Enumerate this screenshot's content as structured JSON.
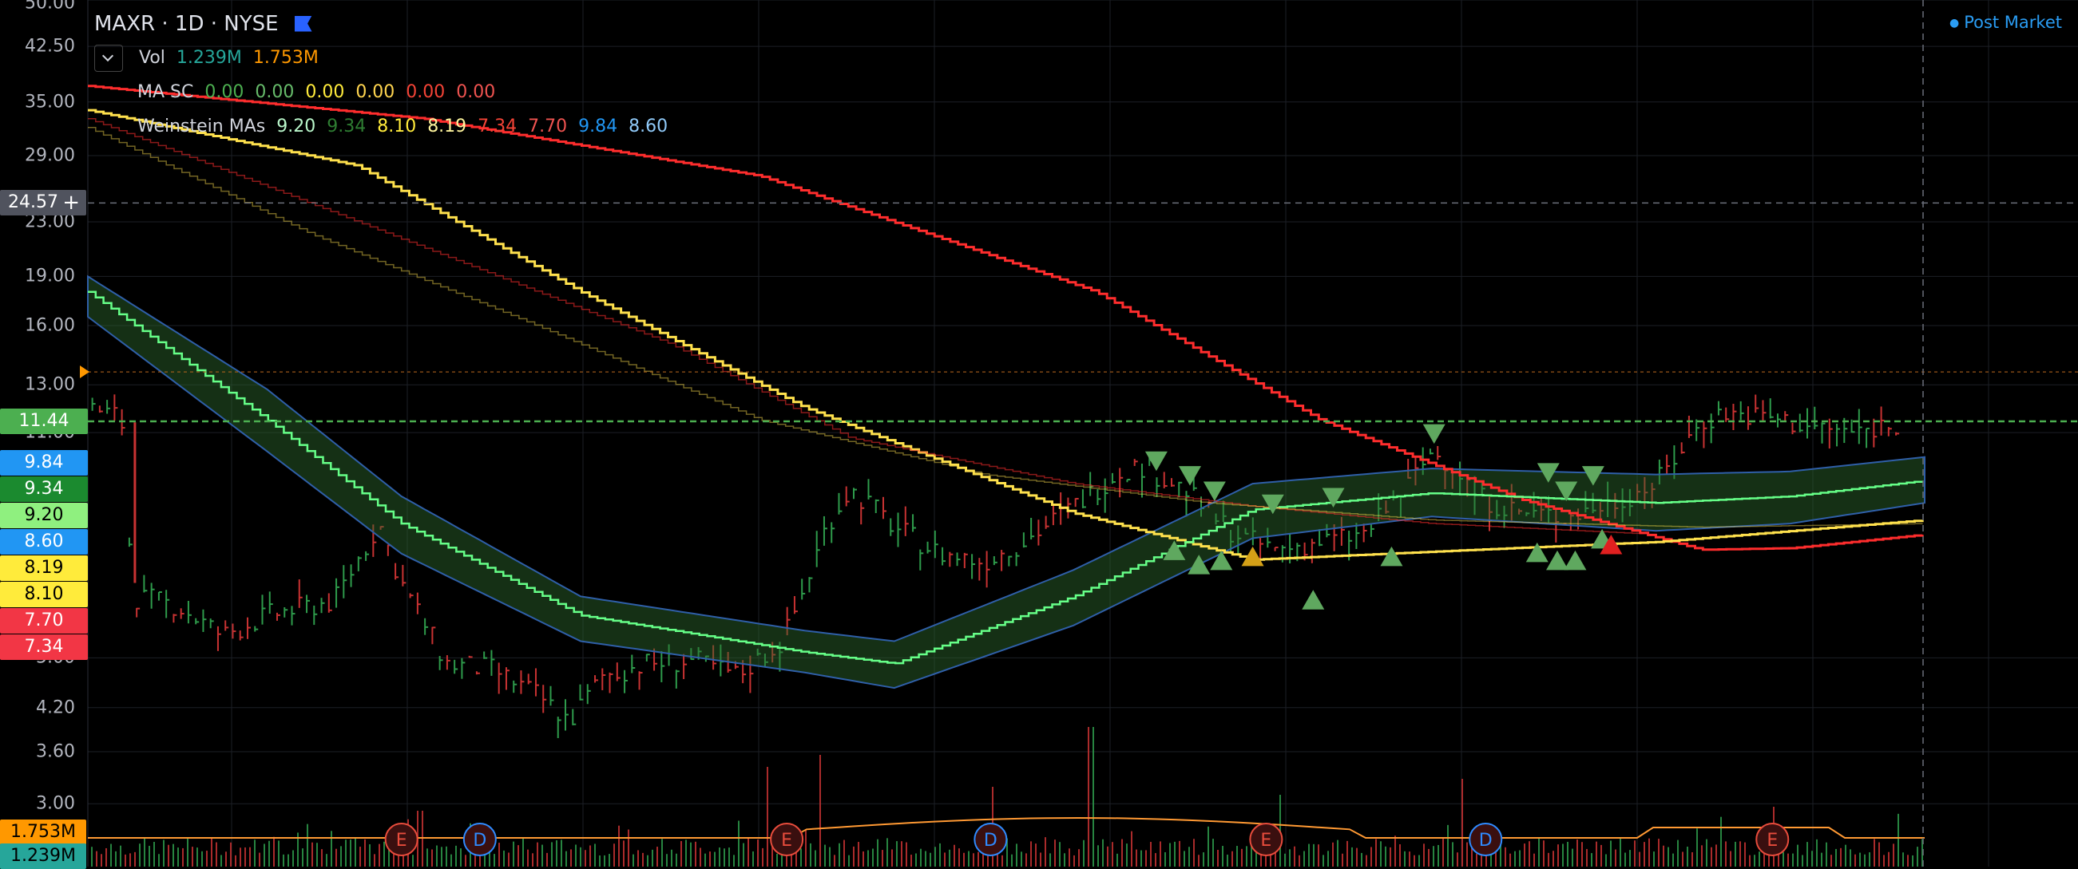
{
  "header": {
    "symbol": "MAXR",
    "interval": "1D",
    "exchange": "NYSE",
    "session": "Post Market"
  },
  "indicators": {
    "vol": {
      "name": "Vol",
      "values": [
        "1.239M",
        "1.753M"
      ],
      "colors": [
        "#26a69a",
        "#ff9800"
      ]
    },
    "ma_sc": {
      "name": "MA SC",
      "values": [
        "0.00",
        "0.00",
        "0.00",
        "0.00",
        "0.00",
        "0.00"
      ],
      "colors": [
        "#4caf50",
        "#66bb6a",
        "#ffeb3b",
        "#ffd54f",
        "#f44336",
        "#ef5350"
      ]
    },
    "weinstein": {
      "name": "Weinstein MAs",
      "values": [
        "9.20",
        "9.34",
        "8.10",
        "8.19",
        "7.34",
        "7.70",
        "9.84",
        "8.60"
      ],
      "colors": [
        "#b9f6ca",
        "#2e7d32",
        "#ffeb3b",
        "#fff59d",
        "#f44336",
        "#ef5350",
        "#2196f3",
        "#90caf9"
      ]
    }
  },
  "colors": {
    "ma_red": "#ff2d2d",
    "ma_yellow": "#ffe14d",
    "ma_green": "#66ff88",
    "band": "#2e6b2e",
    "up": "#2e9b4b",
    "down": "#c83232",
    "volume_ma": "#ff9933",
    "signal": "#5fa85f",
    "signal_warn": "#d4a017",
    "signal_alert": "#e02020"
  },
  "chart_data": {
    "type": "line",
    "y_scale": "log",
    "ylim": [
      2.7,
      50.0
    ],
    "y_ticks": [
      "50.00",
      "42.50",
      "35.00",
      "29.00",
      "23.00",
      "19.00",
      "16.00",
      "13.00",
      "11.00",
      "5.00",
      "4.20",
      "3.60",
      "3.00"
    ],
    "last_price": "11.44",
    "crosshair_price": "24.57",
    "price_tags": [
      {
        "text": "9.84",
        "value": 9.84,
        "color": "#2196f3"
      },
      {
        "text": "9.34",
        "value": 9.34,
        "color": "#1b8a2f"
      },
      {
        "text": "9.20",
        "value": 9.2,
        "color": "#8ff07f"
      },
      {
        "text": "8.60",
        "value": 8.6,
        "color": "#2196f3"
      },
      {
        "text": "8.19",
        "value": 8.19,
        "color": "#ffeb3b"
      },
      {
        "text": "8.10",
        "value": 8.1,
        "color": "#ffeb3b"
      },
      {
        "text": "7.70",
        "value": 7.7,
        "color": "#f23645"
      },
      {
        "text": "7.34",
        "value": 7.34,
        "color": "#f23645"
      }
    ],
    "volume_tags": [
      {
        "text": "1.753M",
        "color": "#ff9800"
      },
      {
        "text": "1.239M",
        "color": "#26a69a"
      }
    ],
    "series": [
      {
        "name": "",
        "key": "ma_red",
        "values": [
          [
            0,
            37
          ],
          [
            15,
            33
          ],
          [
            30,
            27
          ],
          [
            45,
            18
          ],
          [
            55,
            11.5
          ],
          [
            64,
            8.7
          ],
          [
            72,
            7.3
          ],
          [
            76,
            7.34
          ],
          [
            82,
            7.7
          ]
        ]
      },
      {
        "name": "",
        "key": "ma_yellow",
        "values": [
          [
            0,
            34
          ],
          [
            12,
            28
          ],
          [
            22,
            18
          ],
          [
            32,
            12
          ],
          [
            44,
            8.3
          ],
          [
            52,
            7.05
          ],
          [
            62,
            7.3
          ],
          [
            70,
            7.5
          ],
          [
            82,
            8.1
          ]
        ]
      },
      {
        "name": "",
        "key": "ma_green",
        "values": [
          [
            0,
            18
          ],
          [
            8,
            11.5
          ],
          [
            14,
            8
          ],
          [
            22,
            5.8
          ],
          [
            32,
            5.1
          ],
          [
            36,
            4.9
          ],
          [
            44,
            6.2
          ],
          [
            52,
            8.4
          ],
          [
            60,
            8.9
          ],
          [
            70,
            8.6
          ],
          [
            76,
            8.8
          ],
          [
            82,
            9.3
          ]
        ]
      },
      {
        "name": "",
        "key": "ma_red",
        "values": [
          [
            0,
            33
          ],
          [
            8,
            26
          ],
          [
            15,
            21
          ],
          [
            26,
            15
          ],
          [
            34,
            10.8
          ],
          [
            44,
            9.2
          ],
          [
            52,
            8.5
          ],
          [
            60,
            8.0
          ],
          [
            70,
            7.7
          ]
        ]
      },
      {
        "name": "",
        "key": "ma_yellow",
        "values": [
          [
            0,
            32
          ],
          [
            10,
            22
          ],
          [
            20,
            16
          ],
          [
            30,
            11.5
          ],
          [
            40,
            9.5
          ],
          [
            50,
            8.6
          ],
          [
            60,
            8.1
          ],
          [
            72,
            7.9
          ],
          [
            82,
            8.0
          ]
        ]
      }
    ],
    "band": {
      "upper": [
        [
          0,
          19
        ],
        [
          8,
          12.8
        ],
        [
          14,
          8.8
        ],
        [
          22,
          6.2
        ],
        [
          32,
          5.5
        ],
        [
          36,
          5.3
        ],
        [
          44,
          6.8
        ],
        [
          52,
          9.2
        ],
        [
          60,
          9.7
        ],
        [
          70,
          9.5
        ],
        [
          76,
          9.6
        ],
        [
          82,
          10.1
        ]
      ],
      "lower": [
        [
          0,
          16.5
        ],
        [
          8,
          10.3
        ],
        [
          14,
          7.2
        ],
        [
          22,
          5.3
        ],
        [
          32,
          4.75
        ],
        [
          36,
          4.5
        ],
        [
          44,
          5.6
        ],
        [
          52,
          7.6
        ],
        [
          60,
          8.2
        ],
        [
          70,
          7.8
        ],
        [
          76,
          8.0
        ],
        [
          82,
          8.6
        ]
      ]
    },
    "events": [
      {
        "label": "E",
        "x": 14,
        "kind": "earnings"
      },
      {
        "label": "D",
        "x": 17.5,
        "kind": "dividend"
      },
      {
        "label": "E",
        "x": 31.2,
        "kind": "earnings"
      },
      {
        "label": "D",
        "x": 40.3,
        "kind": "dividend"
      },
      {
        "label": "E",
        "x": 52.6,
        "kind": "earnings"
      },
      {
        "label": "D",
        "x": 62.4,
        "kind": "dividend"
      },
      {
        "label": "E",
        "x": 75.2,
        "kind": "earnings"
      }
    ],
    "signals": [
      {
        "x": 48.5,
        "y": 7.25,
        "dir": "up",
        "kind": "normal"
      },
      {
        "x": 49.6,
        "y": 6.9,
        "dir": "up",
        "kind": "normal"
      },
      {
        "x": 50.6,
        "y": 7.0,
        "dir": "up",
        "kind": "normal"
      },
      {
        "x": 54.7,
        "y": 6.1,
        "dir": "up",
        "kind": "normal"
      },
      {
        "x": 52.0,
        "y": 7.1,
        "dir": "up",
        "kind": "warn"
      },
      {
        "x": 58.2,
        "y": 7.1,
        "dir": "up",
        "kind": "normal"
      },
      {
        "x": 64.7,
        "y": 7.2,
        "dir": "up",
        "kind": "normal"
      },
      {
        "x": 65.6,
        "y": 7.0,
        "dir": "up",
        "kind": "normal"
      },
      {
        "x": 66.4,
        "y": 7.0,
        "dir": "up",
        "kind": "normal"
      },
      {
        "x": 67.6,
        "y": 7.55,
        "dir": "up",
        "kind": "normal"
      },
      {
        "x": 68.0,
        "y": 7.4,
        "dir": "up",
        "kind": "alert"
      },
      {
        "x": 47.7,
        "y": 10.0,
        "dir": "down",
        "kind": "normal"
      },
      {
        "x": 49.2,
        "y": 9.5,
        "dir": "down",
        "kind": "normal"
      },
      {
        "x": 50.3,
        "y": 9.0,
        "dir": "down",
        "kind": "normal"
      },
      {
        "x": 52.9,
        "y": 8.6,
        "dir": "down",
        "kind": "normal"
      },
      {
        "x": 55.6,
        "y": 8.8,
        "dir": "down",
        "kind": "normal"
      },
      {
        "x": 60.1,
        "y": 11.0,
        "dir": "down",
        "kind": "normal"
      },
      {
        "x": 65.2,
        "y": 9.6,
        "dir": "down",
        "kind": "normal"
      },
      {
        "x": 66.0,
        "y": 9.0,
        "dir": "down",
        "kind": "normal"
      },
      {
        "x": 67.2,
        "y": 9.5,
        "dir": "down",
        "kind": "normal"
      }
    ],
    "price_path": [
      [
        0,
        12
      ],
      [
        1.5,
        11.6
      ],
      [
        2,
        6.2
      ],
      [
        4,
        6.0
      ],
      [
        6,
        5.4
      ],
      [
        8,
        5.8
      ],
      [
        11,
        6.1
      ],
      [
        13,
        8.0
      ],
      [
        14,
        6.5
      ],
      [
        16,
        4.9
      ],
      [
        18,
        4.8
      ],
      [
        20,
        4.4
      ],
      [
        21.5,
        4.0
      ],
      [
        23,
        4.7
      ],
      [
        25,
        4.9
      ],
      [
        27,
        4.95
      ],
      [
        29,
        4.7
      ],
      [
        31,
        5.3
      ],
      [
        32,
        6.4
      ],
      [
        33,
        8.0
      ],
      [
        34,
        9.0
      ],
      [
        35,
        8.5
      ],
      [
        36,
        7.9
      ],
      [
        38,
        7.2
      ],
      [
        40,
        7.0
      ],
      [
        42,
        7.6
      ],
      [
        44,
        8.5
      ],
      [
        46,
        9.6
      ],
      [
        47,
        9.8
      ],
      [
        49,
        9.0
      ],
      [
        50,
        8.3
      ],
      [
        51.5,
        7.6
      ],
      [
        53,
        7.3
      ],
      [
        55,
        7.5
      ],
      [
        57,
        7.7
      ],
      [
        59,
        9.2
      ],
      [
        60,
        10.3
      ],
      [
        61,
        9.8
      ],
      [
        62,
        8.8
      ],
      [
        64,
        8.3
      ],
      [
        66,
        8.2
      ],
      [
        68,
        8.6
      ],
      [
        70,
        9.2
      ],
      [
        72,
        11.4
      ],
      [
        73,
        11.8
      ],
      [
        75,
        11.6
      ],
      [
        77,
        11.2
      ],
      [
        79,
        11.0
      ],
      [
        80.5,
        11.4
      ]
    ]
  }
}
